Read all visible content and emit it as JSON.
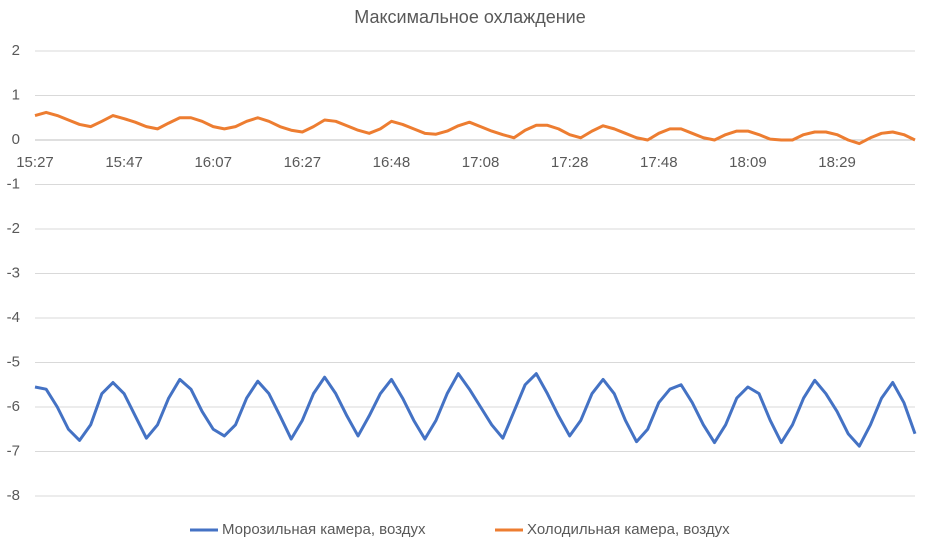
{
  "chart_data": {
    "type": "line",
    "title": "Максимальное охлаждение",
    "categories": [
      "15:27",
      null,
      null,
      null,
      null,
      null,
      null,
      null,
      "15:47",
      null,
      null,
      null,
      null,
      null,
      null,
      null,
      "16:07",
      null,
      null,
      null,
      null,
      null,
      null,
      null,
      "16:27",
      null,
      null,
      null,
      null,
      null,
      null,
      null,
      "16:48",
      null,
      null,
      null,
      null,
      null,
      null,
      null,
      "17:08",
      null,
      null,
      null,
      null,
      null,
      null,
      null,
      "17:28",
      null,
      null,
      null,
      null,
      null,
      null,
      null,
      "17:48",
      null,
      null,
      null,
      null,
      null,
      null,
      null,
      "18:09",
      null,
      null,
      null,
      null,
      null,
      null,
      null,
      "18:29",
      null,
      null,
      null,
      null,
      null,
      null,
      null
    ],
    "series": [
      {
        "name": "Морозильная камера, воздух",
        "color": "#4472c4",
        "values": [
          -5.55,
          -5.6,
          -6.0,
          -6.5,
          -6.75,
          -6.4,
          -5.7,
          -5.45,
          -5.7,
          -6.2,
          -6.7,
          -6.4,
          -5.8,
          -5.38,
          -5.6,
          -6.1,
          -6.5,
          -6.65,
          -6.4,
          -5.8,
          -5.42,
          -5.7,
          -6.2,
          -6.72,
          -6.3,
          -5.7,
          -5.33,
          -5.7,
          -6.2,
          -6.65,
          -6.2,
          -5.7,
          -5.38,
          -5.8,
          -6.3,
          -6.72,
          -6.3,
          -5.7,
          -5.25,
          -5.6,
          -6.0,
          -6.4,
          -6.7,
          -6.1,
          -5.5,
          -5.25,
          -5.7,
          -6.2,
          -6.65,
          -6.3,
          -5.7,
          -5.38,
          -5.7,
          -6.3,
          -6.78,
          -6.5,
          -5.9,
          -5.6,
          -5.5,
          -5.9,
          -6.4,
          -6.8,
          -6.4,
          -5.8,
          -5.55,
          -5.7,
          -6.3,
          -6.8,
          -6.4,
          -5.8,
          -5.4,
          -5.7,
          -6.1,
          -6.6,
          -6.88,
          -6.4,
          -5.8,
          -5.45,
          -5.9,
          -6.6
        ]
      },
      {
        "name": "Холодильная камера, воздух",
        "color": "#ed7d31",
        "values": [
          0.55,
          0.62,
          0.55,
          0.45,
          0.35,
          0.3,
          0.42,
          0.55,
          0.48,
          0.4,
          0.3,
          0.25,
          0.38,
          0.5,
          0.5,
          0.42,
          0.3,
          0.25,
          0.3,
          0.42,
          0.5,
          0.42,
          0.3,
          0.22,
          0.18,
          0.3,
          0.45,
          0.42,
          0.32,
          0.22,
          0.15,
          0.25,
          0.42,
          0.35,
          0.25,
          0.15,
          0.13,
          0.2,
          0.32,
          0.4,
          0.3,
          0.2,
          0.12,
          0.05,
          0.22,
          0.33,
          0.33,
          0.25,
          0.12,
          0.05,
          0.2,
          0.32,
          0.25,
          0.15,
          0.05,
          0.0,
          0.15,
          0.25,
          0.25,
          0.15,
          0.05,
          0.0,
          0.12,
          0.2,
          0.2,
          0.12,
          0.02,
          0.0,
          0.0,
          0.12,
          0.18,
          0.18,
          0.12,
          0.0,
          -0.08,
          0.05,
          0.15,
          0.18,
          0.12,
          0.0
        ]
      }
    ],
    "ylim": [
      -8,
      2
    ],
    "yticks": [
      -8,
      -7,
      -6,
      -5,
      -4,
      -3,
      -2,
      -1,
      0,
      1,
      2
    ],
    "grid": true,
    "legend": "bottom"
  }
}
